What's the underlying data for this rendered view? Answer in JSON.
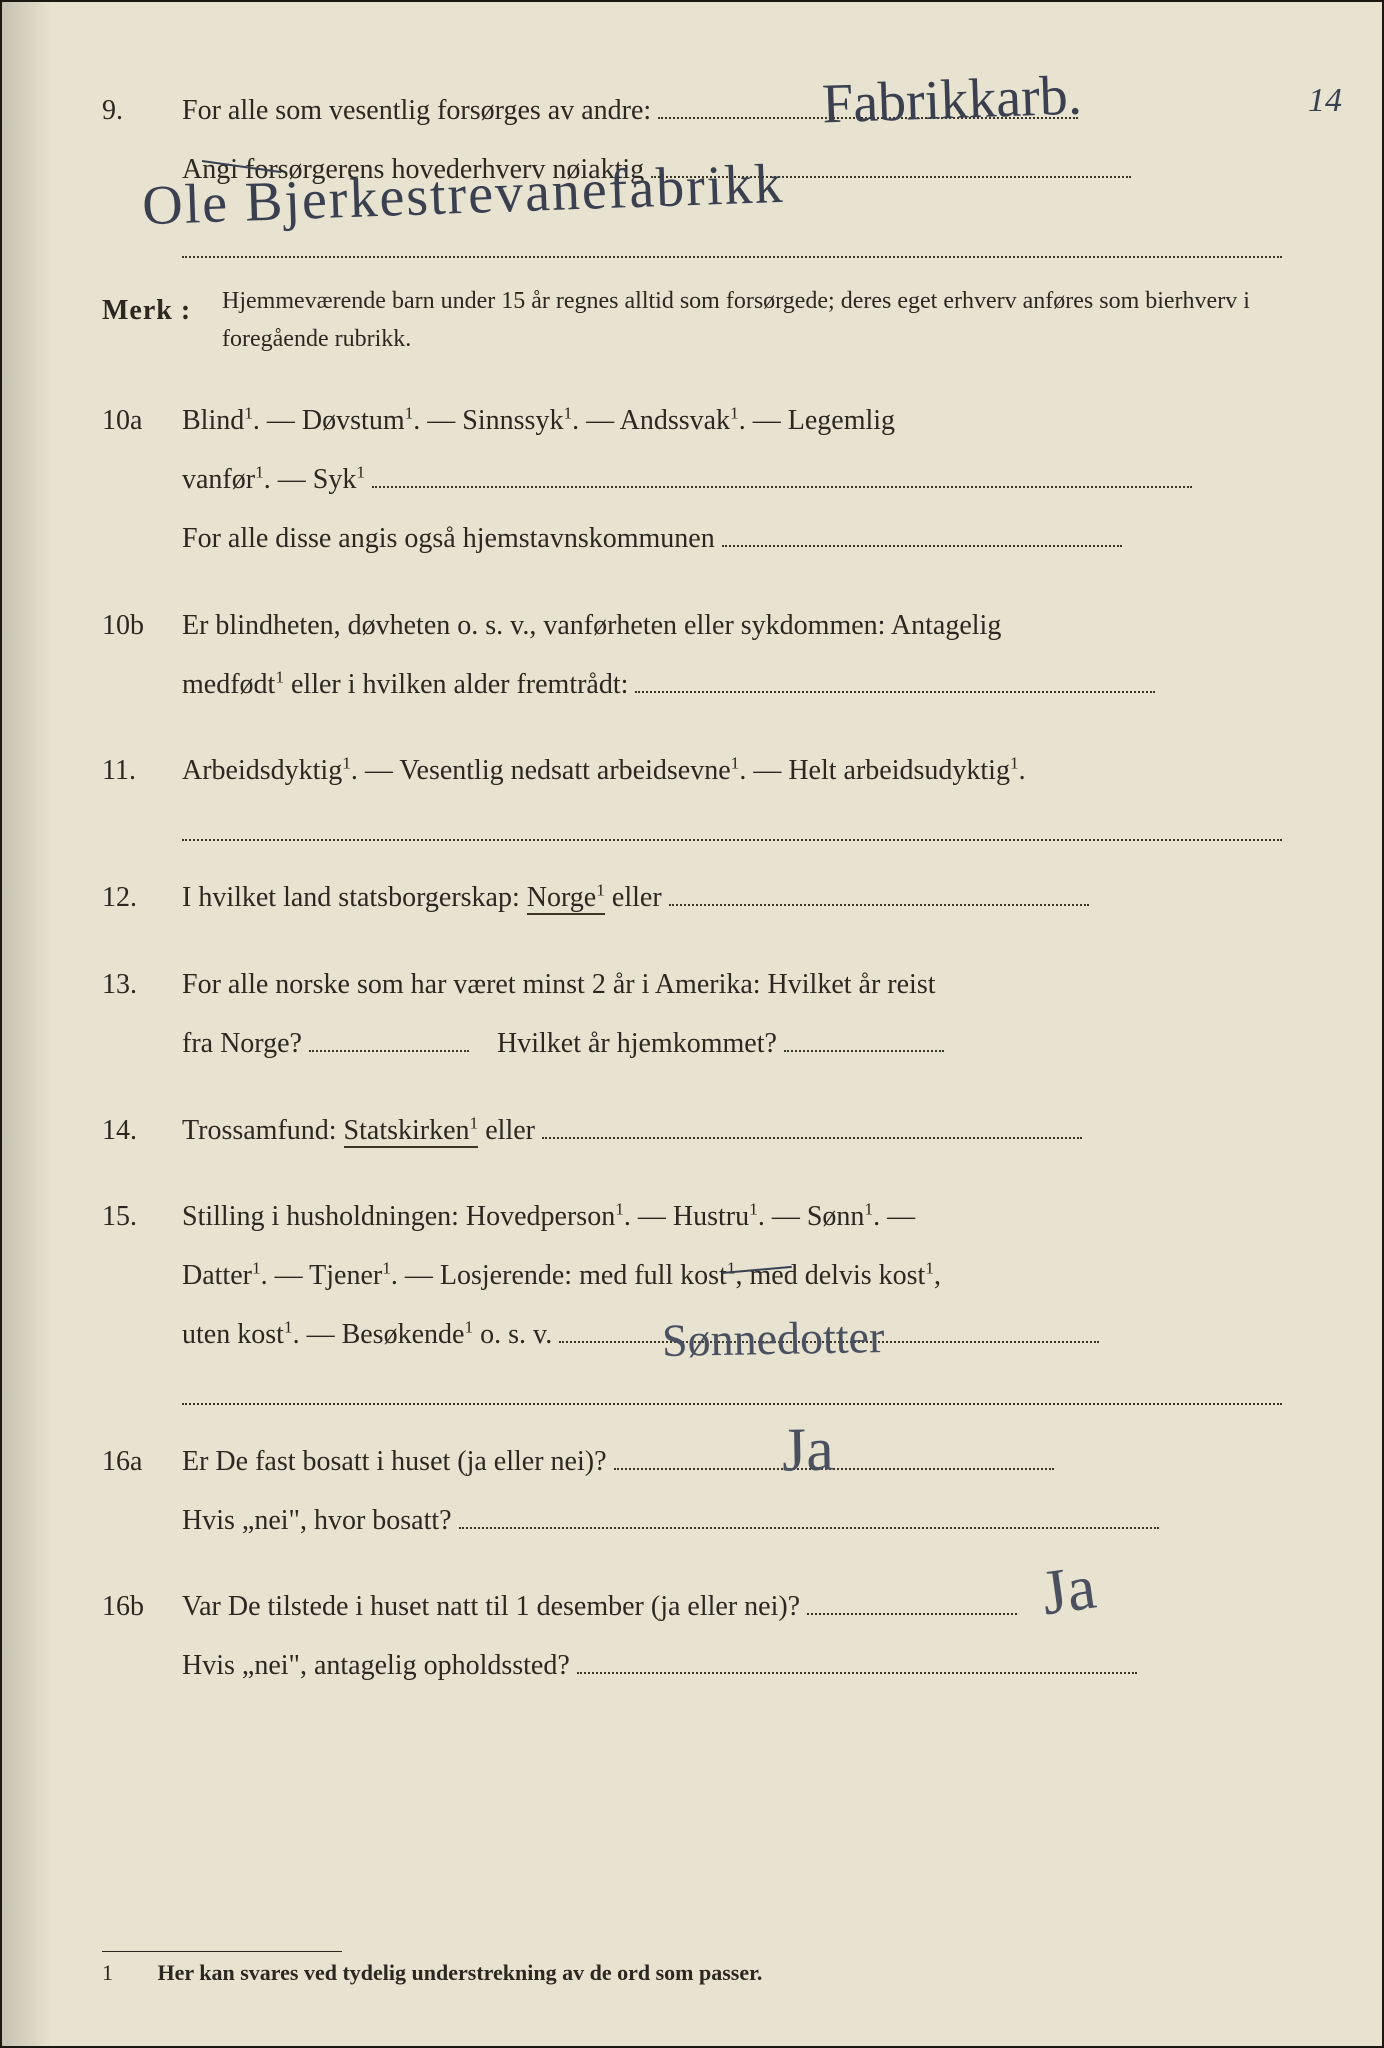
{
  "page_number_handwritten": "14",
  "q9": {
    "num": "9.",
    "line1_pre": "For alle som vesentlig forsørges av andre:",
    "line2_pre": "Angi forsørgerens hovederhverv nøiaktig",
    "handwritten_top": "Fabrikkarb.",
    "handwritten_below": "Ole Bjerkestrevanefabrikk"
  },
  "merk": {
    "label": "Merk :",
    "text": "Hjemmeværende barn under 15 år regnes alltid som forsørgede; deres eget erhverv anføres som bierhverv i foregående rubrikk."
  },
  "q10a": {
    "num": "10a",
    "line1": "Blind¹.   —   Døvstum¹.   —   Sinnssyk¹.   —   Andssvak¹.   —   Legemlig",
    "line2_pre": "vanfør¹.   —   Syk¹",
    "line3": "For  alle  disse angis også hjemstavnskommunen"
  },
  "q10b": {
    "num": "10b",
    "line1": "Er blindheten, døvheten o. s. v., vanførheten eller sykdommen: Antagelig",
    "line2": "medfødt¹ eller i hvilken alder fremtrådt:"
  },
  "q11": {
    "num": "11.",
    "text": "Arbeidsdyktig¹. — Vesentlig nedsatt arbeidsevne¹. — Helt arbeidsudyktig¹."
  },
  "q12": {
    "num": "12.",
    "pre": "I hvilket land statsborgerskap:  ",
    "norge": "Norge¹",
    "post": " eller"
  },
  "q13": {
    "num": "13.",
    "line1": "For alle norske som har været minst 2 år i Amerika: Hvilket år reist",
    "line2a": "fra Norge?",
    "line2b": "Hvilket år hjemkommet?"
  },
  "q14": {
    "num": "14.",
    "pre": "Trossamfund:  ",
    "statskirken": "Statskirken¹",
    "post": " eller"
  },
  "q15": {
    "num": "15.",
    "line1": "Stilling  i  husholdningen:   Hovedperson¹.   —   Hustru¹.   —   Sønn¹.  —",
    "line2": "Datter¹.   —   Tjener¹.   —   Losjerende:  med full kost¹,  med delvis kost¹,",
    "line3_pre": "uten kost¹.   —   Besøkende¹ o. s. v.",
    "handwritten": "Sønnedotter"
  },
  "q16a": {
    "num": "16a",
    "line1": "Er De fast bosatt i huset (ja eller nei)?",
    "line2": "Hvis „nei\", hvor bosatt?",
    "handwritten": "Ja"
  },
  "q16b": {
    "num": "16b",
    "line1": "Var De tilstede i huset natt til 1 desember (ja eller nei)?",
    "line2": "Hvis „nei\", antagelig opholdssted?",
    "handwritten": "Ja"
  },
  "footnote": {
    "num": "1",
    "text": "Her kan svares ved tydelig understrekning av de ord som passer."
  },
  "colors": {
    "paper": "#e8e3d0",
    "ink": "#2a2820",
    "handwriting": "#3a4050"
  }
}
